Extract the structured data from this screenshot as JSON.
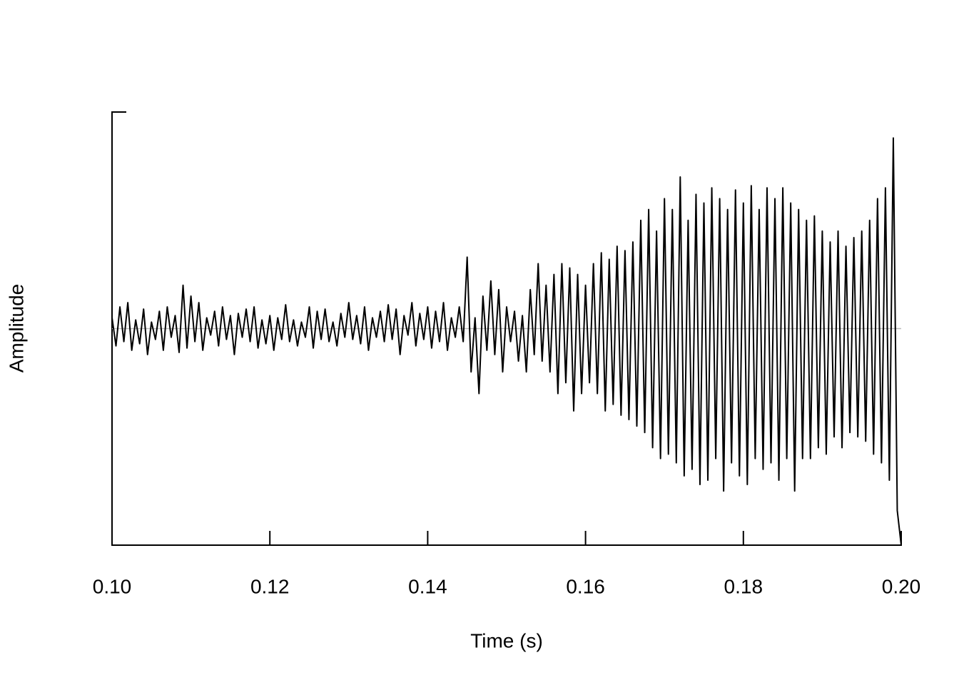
{
  "chart_data": {
    "type": "line",
    "xlabel": "Time (s)",
    "ylabel": "Amplitude",
    "color": "#000000",
    "xlim": [
      0.1,
      0.2
    ],
    "ylim": [
      -1,
      1
    ],
    "xticks": [
      {
        "value": 0.1,
        "label": "0.10"
      },
      0.12,
      0.14,
      0.16,
      0.18,
      {
        "value": 0.2,
        "label": "0.20"
      }
    ],
    "x": [
      0.1,
      0.1005,
      0.101,
      0.1015,
      0.102,
      0.1025,
      0.103,
      0.1035,
      0.104,
      0.1045,
      0.105,
      0.1055,
      0.106,
      0.1065,
      0.107,
      0.1075,
      0.108,
      0.1085,
      0.109,
      0.1095,
      0.11,
      0.1105,
      0.111,
      0.1115,
      0.112,
      0.1125,
      0.113,
      0.1135,
      0.114,
      0.1145,
      0.115,
      0.1155,
      0.116,
      0.1165,
      0.117,
      0.1175,
      0.118,
      0.1185,
      0.119,
      0.1195,
      0.12,
      0.1205,
      0.121,
      0.1215,
      0.122,
      0.1225,
      0.123,
      0.1235,
      0.124,
      0.1245,
      0.125,
      0.1255,
      0.126,
      0.1265,
      0.127,
      0.1275,
      0.128,
      0.1285,
      0.129,
      0.1295,
      0.13,
      0.1305,
      0.131,
      0.1315,
      0.132,
      0.1325,
      0.133,
      0.1335,
      0.134,
      0.1345,
      0.135,
      0.1355,
      0.136,
      0.1365,
      0.137,
      0.1375,
      0.138,
      0.1385,
      0.139,
      0.1395,
      0.14,
      0.1405,
      0.141,
      0.1415,
      0.142,
      0.1425,
      0.143,
      0.1435,
      0.144,
      0.1445,
      0.145,
      0.1455,
      0.146,
      0.1465,
      0.147,
      0.1475,
      0.148,
      0.1485,
      0.149,
      0.1495,
      0.15,
      0.1505,
      0.151,
      0.1515,
      0.152,
      0.1525,
      0.153,
      0.1535,
      0.154,
      0.1545,
      0.155,
      0.1555,
      0.156,
      0.1565,
      0.157,
      0.1575,
      0.158,
      0.1585,
      0.159,
      0.1595,
      0.16,
      0.1605,
      0.161,
      0.1615,
      0.162,
      0.1625,
      0.163,
      0.1635,
      0.164,
      0.1645,
      0.165,
      0.1655,
      0.166,
      0.1665,
      0.167,
      0.1675,
      0.168,
      0.1685,
      0.169,
      0.1695,
      0.17,
      0.1705,
      0.171,
      0.1715,
      0.172,
      0.1725,
      0.173,
      0.1735,
      0.174,
      0.1745,
      0.175,
      0.1755,
      0.176,
      0.1765,
      0.177,
      0.1775,
      0.178,
      0.1785,
      0.179,
      0.1795,
      0.18,
      0.1805,
      0.181,
      0.1815,
      0.182,
      0.1825,
      0.183,
      0.1835,
      0.184,
      0.1845,
      0.185,
      0.1855,
      0.186,
      0.1865,
      0.187,
      0.1875,
      0.188,
      0.1885,
      0.189,
      0.1895,
      0.19,
      0.1905,
      0.191,
      0.1915,
      0.192,
      0.1925,
      0.193,
      0.1935,
      0.194,
      0.1945,
      0.195,
      0.1955,
      0.196,
      0.1965,
      0.197,
      0.1975,
      0.198,
      0.1985,
      0.199,
      0.1995,
      0.2
    ],
    "values": [
      0.05,
      -0.08,
      0.1,
      -0.06,
      0.12,
      -0.1,
      0.04,
      -0.07,
      0.09,
      -0.12,
      0.03,
      -0.05,
      0.08,
      -0.1,
      0.1,
      -0.04,
      0.06,
      -0.11,
      0.2,
      -0.09,
      0.15,
      -0.06,
      0.12,
      -0.1,
      0.05,
      -0.03,
      0.08,
      -0.08,
      0.1,
      -0.05,
      0.06,
      -0.12,
      0.07,
      -0.04,
      0.09,
      -0.06,
      0.1,
      -0.09,
      0.04,
      -0.07,
      0.06,
      -0.1,
      0.05,
      -0.05,
      0.11,
      -0.06,
      0.04,
      -0.08,
      0.03,
      -0.04,
      0.1,
      -0.09,
      0.08,
      -0.05,
      0.09,
      -0.06,
      0.03,
      -0.08,
      0.07,
      -0.04,
      0.12,
      -0.05,
      0.06,
      -0.07,
      0.1,
      -0.1,
      0.05,
      -0.04,
      0.08,
      -0.06,
      0.11,
      -0.05,
      0.09,
      -0.12,
      0.06,
      -0.03,
      0.12,
      -0.08,
      0.07,
      -0.05,
      0.1,
      -0.09,
      0.08,
      -0.06,
      0.12,
      -0.1,
      0.05,
      -0.04,
      0.1,
      -0.06,
      0.33,
      -0.2,
      0.05,
      -0.3,
      0.15,
      -0.1,
      0.22,
      -0.12,
      0.18,
      -0.2,
      0.1,
      -0.06,
      0.08,
      -0.15,
      0.06,
      -0.2,
      0.18,
      -0.12,
      0.3,
      -0.15,
      0.2,
      -0.2,
      0.25,
      -0.3,
      0.3,
      -0.25,
      0.28,
      -0.38,
      0.25,
      -0.3,
      0.2,
      -0.25,
      0.3,
      -0.3,
      0.35,
      -0.38,
      0.32,
      -0.35,
      0.38,
      -0.4,
      0.36,
      -0.42,
      0.4,
      -0.45,
      0.5,
      -0.48,
      0.55,
      -0.55,
      0.45,
      -0.6,
      0.6,
      -0.58,
      0.55,
      -0.62,
      0.7,
      -0.68,
      0.5,
      -0.65,
      0.62,
      -0.72,
      0.58,
      -0.7,
      0.65,
      -0.6,
      0.6,
      -0.75,
      0.55,
      -0.62,
      0.64,
      -0.68,
      0.58,
      -0.72,
      0.66,
      -0.6,
      0.55,
      -0.65,
      0.65,
      -0.62,
      0.6,
      -0.7,
      0.65,
      -0.6,
      0.58,
      -0.75,
      0.55,
      -0.6,
      0.5,
      -0.6,
      0.52,
      -0.55,
      0.45,
      -0.58,
      0.4,
      -0.5,
      0.45,
      -0.55,
      0.38,
      -0.48,
      0.42,
      -0.5,
      0.45,
      -0.52,
      0.5,
      -0.58,
      0.6,
      -0.62,
      0.65,
      -0.7,
      0.88,
      -0.84,
      -1.0
    ]
  }
}
